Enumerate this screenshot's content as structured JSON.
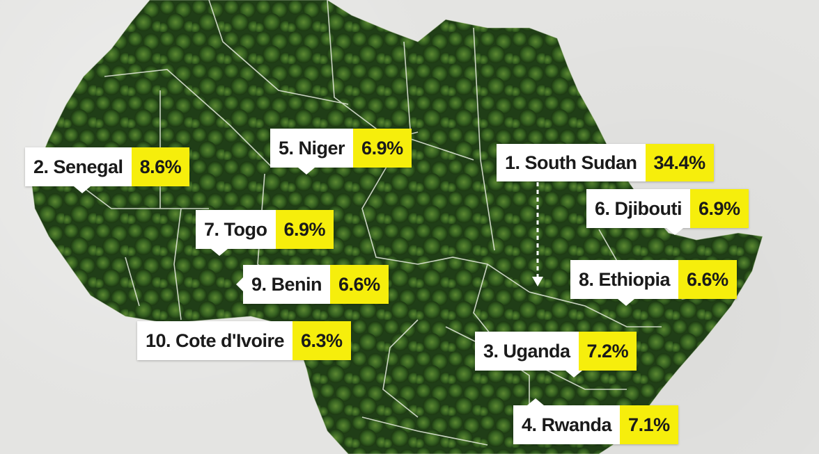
{
  "colors": {
    "background": "#e4e4e2",
    "highlight": "#f6ee0c",
    "label_bg": "#ffffff",
    "forest": "#2f5a22"
  },
  "labels": [
    {
      "rank_name": "1. South Sudan",
      "value": "34.4%"
    },
    {
      "rank_name": "2. Senegal",
      "value": "8.6%"
    },
    {
      "rank_name": "3. Uganda",
      "value": "7.2%"
    },
    {
      "rank_name": "4. Rwanda",
      "value": "7.1%"
    },
    {
      "rank_name": "5. Niger",
      "value": "6.9%"
    },
    {
      "rank_name": "6. Djibouti",
      "value": "6.9%"
    },
    {
      "rank_name": "7. Togo",
      "value": "6.9%"
    },
    {
      "rank_name": "8. Ethiopia",
      "value": "6.6%"
    },
    {
      "rank_name": "9. Benin",
      "value": "6.6%"
    },
    {
      "rank_name": "10. Cote d'Ivoire",
      "value": "6.3%"
    }
  ]
}
